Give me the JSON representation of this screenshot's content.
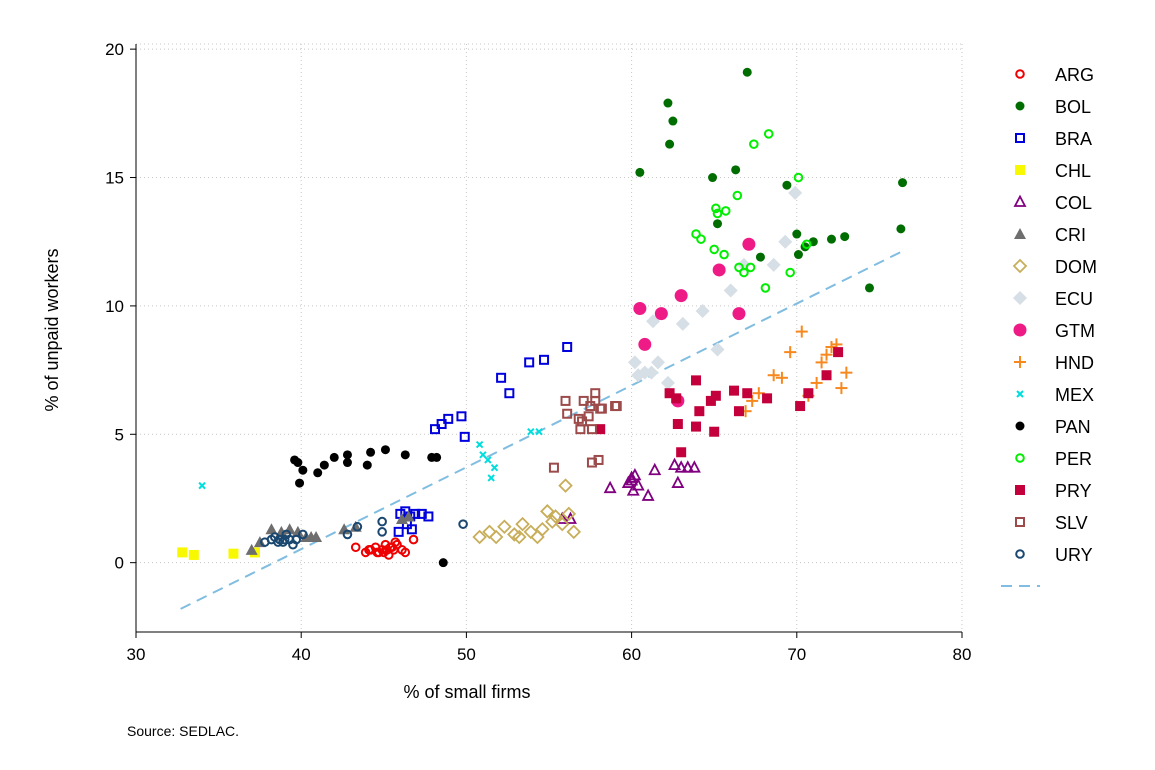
{
  "chart_data": {
    "type": "scatter",
    "xlabel": "% of small firms",
    "ylabel": "% of unpaid workers",
    "note": "Source: SEDLAC.",
    "xlim": [
      30,
      80
    ],
    "ylim": [
      -2.7,
      20.2
    ],
    "xticks": [
      30,
      40,
      50,
      60,
      70,
      80
    ],
    "yticks": [
      0,
      5,
      10,
      15,
      20
    ],
    "grid": true,
    "legend_position": "right",
    "fit_line": {
      "color": "#80bde0",
      "x": [
        32.7,
        76.3
      ],
      "y": [
        -1.8,
        12.1
      ]
    },
    "series": [
      {
        "name": "ARG",
        "marker": "circle-open",
        "color": "#ee0000",
        "x": [
          43.3,
          43.9,
          44.2,
          44.5,
          44.7,
          44.9,
          45.1,
          45.3,
          45.5,
          45.6,
          45.2,
          44.6,
          45.0,
          45.4,
          45.8,
          46.1,
          46.3,
          46.8,
          44.1,
          45.7
        ],
        "y": [
          0.6,
          0.4,
          0.5,
          0.6,
          0.4,
          0.5,
          0.7,
          0.3,
          0.6,
          0.5,
          0.5,
          0.4,
          0.4,
          0.6,
          0.7,
          0.5,
          0.4,
          0.9,
          0.5,
          0.8
        ]
      },
      {
        "name": "BOL",
        "marker": "circle-filled",
        "color": "#006d00",
        "x": [
          67.0,
          62.2,
          62.5,
          62.3,
          66.3,
          64.9,
          60.5,
          69.4,
          65.2,
          70.0,
          70.1,
          71.0,
          70.5,
          72.1,
          72.9,
          76.4,
          76.3,
          74.4,
          67.8
        ],
        "y": [
          19.1,
          17.9,
          17.2,
          16.3,
          15.3,
          15.0,
          15.2,
          14.7,
          13.2,
          12.8,
          12.0,
          12.5,
          12.3,
          12.6,
          12.7,
          14.8,
          13.0,
          10.7,
          11.9
        ]
      },
      {
        "name": "BRA",
        "marker": "square-open",
        "color": "#0000dd",
        "x": [
          56.1,
          54.7,
          53.8,
          52.1,
          52.6,
          48.9,
          49.7,
          48.5,
          48.1,
          49.9,
          46.0,
          46.3,
          46.6,
          46.9,
          47.3,
          47.7,
          45.9,
          46.7,
          46.4
        ],
        "y": [
          8.4,
          7.9,
          7.8,
          7.2,
          6.6,
          5.6,
          5.7,
          5.4,
          5.2,
          4.9,
          1.9,
          2.0,
          1.8,
          1.9,
          1.9,
          1.8,
          1.2,
          1.3,
          1.5
        ]
      },
      {
        "name": "CHL",
        "marker": "square-filled",
        "color": "#f8f800",
        "x": [
          32.8,
          33.5,
          35.9,
          37.2
        ],
        "y": [
          0.4,
          0.3,
          0.35,
          0.4
        ]
      },
      {
        "name": "COL",
        "marker": "triangle-open",
        "color": "#800080",
        "x": [
          58.7,
          59.8,
          60.0,
          60.2,
          60.4,
          60.1,
          60.0,
          61.0,
          61.4,
          62.6,
          63.0,
          63.4,
          63.8,
          62.8,
          55.8,
          56.3
        ],
        "y": [
          2.9,
          3.1,
          3.3,
          3.4,
          3.0,
          2.8,
          3.2,
          2.6,
          3.6,
          3.8,
          3.7,
          3.7,
          3.7,
          3.1,
          1.7,
          1.7
        ]
      },
      {
        "name": "CRI",
        "marker": "triangle-filled",
        "color": "#6e6e6e",
        "x": [
          37.0,
          37.5,
          38.2,
          38.8,
          39.3,
          39.8,
          40.3,
          40.6,
          40.9,
          42.6,
          43.3,
          46.1,
          46.5
        ],
        "y": [
          0.5,
          0.8,
          1.3,
          1.2,
          1.3,
          1.2,
          1.0,
          1.0,
          1.0,
          1.3,
          1.4,
          1.7,
          1.8
        ]
      },
      {
        "name": "DOM",
        "marker": "diamond-open",
        "color": "#c8ae5a",
        "x": [
          50.8,
          51.4,
          51.8,
          52.3,
          52.9,
          53.4,
          53.9,
          54.3,
          54.9,
          55.4,
          55.8,
          56.2,
          56.5,
          56.0,
          53.2,
          54.6,
          55.2
        ],
        "y": [
          1.0,
          1.2,
          1.0,
          1.4,
          1.1,
          1.5,
          1.2,
          1.0,
          2.0,
          1.8,
          1.5,
          1.9,
          1.2,
          3.0,
          1.0,
          1.3,
          1.6
        ]
      },
      {
        "name": "ECU",
        "marker": "diamond-filled",
        "color": "#d6dee6",
        "x": [
          60.2,
          60.8,
          61.3,
          61.6,
          62.2,
          63.1,
          64.3,
          65.2,
          66.0,
          66.8,
          68.6,
          69.3,
          69.9,
          60.4,
          61.2
        ],
        "y": [
          7.8,
          7.4,
          9.4,
          7.8,
          7.0,
          9.3,
          9.8,
          8.3,
          10.6,
          11.6,
          11.6,
          12.5,
          14.4,
          7.3,
          7.4
        ]
      },
      {
        "name": "GTM",
        "marker": "circle-big",
        "color": "#ee1b87",
        "x": [
          60.5,
          60.8,
          61.8,
          63.0,
          62.8,
          65.3,
          66.5,
          67.1
        ],
        "y": [
          9.9,
          8.5,
          9.7,
          10.4,
          6.3,
          11.4,
          9.7,
          12.4
        ]
      },
      {
        "name": "HND",
        "marker": "plus",
        "color": "#f7881e",
        "x": [
          70.3,
          69.6,
          71.5,
          71.8,
          72.1,
          72.4,
          73.0,
          72.7,
          70.7,
          71.2,
          68.6,
          69.1,
          67.3,
          66.9,
          67.7
        ],
        "y": [
          9.0,
          8.2,
          7.8,
          8.1,
          8.4,
          8.5,
          7.4,
          6.8,
          6.5,
          7.0,
          7.3,
          7.2,
          6.3,
          5.9,
          6.6
        ]
      },
      {
        "name": "MEX",
        "marker": "cross-small",
        "color": "#00dddd",
        "x": [
          34.0,
          50.8,
          51.0,
          51.3,
          51.5,
          51.7,
          53.9,
          54.4
        ],
        "y": [
          3.0,
          4.6,
          4.2,
          4.0,
          3.3,
          3.7,
          5.1,
          5.1
        ]
      },
      {
        "name": "PAN",
        "marker": "circle-filled",
        "color": "#000000",
        "x": [
          39.6,
          39.8,
          40.1,
          39.9,
          41.0,
          41.4,
          42.0,
          42.8,
          42.8,
          44.0,
          44.2,
          45.1,
          46.3,
          47.9,
          48.2,
          48.6
        ],
        "y": [
          4.0,
          3.9,
          3.6,
          3.1,
          3.5,
          3.8,
          4.1,
          4.2,
          3.9,
          3.8,
          4.3,
          4.4,
          4.2,
          4.1,
          4.1,
          0.0
        ]
      },
      {
        "name": "PER",
        "marker": "circle-open",
        "color": "#00ee00",
        "x": [
          68.3,
          67.4,
          70.1,
          66.4,
          65.1,
          65.2,
          65.7,
          63.9,
          64.2,
          65.0,
          65.6,
          66.5,
          66.8,
          67.2,
          69.6,
          70.6,
          68.1
        ],
        "y": [
          16.7,
          16.3,
          15.0,
          14.3,
          13.8,
          13.6,
          13.7,
          12.8,
          12.6,
          12.2,
          12.0,
          11.5,
          11.3,
          11.5,
          11.3,
          12.4,
          10.7
        ]
      },
      {
        "name": "PRY",
        "marker": "square-filled",
        "color": "#c3003c",
        "x": [
          63.9,
          64.1,
          62.3,
          62.7,
          62.8,
          63.0,
          64.8,
          65.1,
          63.9,
          65.0,
          66.2,
          66.5,
          67.0,
          68.2,
          70.2,
          70.7,
          71.8,
          72.5,
          58.1
        ],
        "y": [
          7.1,
          5.9,
          6.6,
          6.4,
          5.4,
          4.3,
          6.3,
          6.5,
          5.3,
          5.1,
          6.7,
          5.9,
          6.6,
          6.4,
          6.1,
          6.6,
          7.3,
          8.2,
          5.2
        ]
      },
      {
        "name": "SLV",
        "marker": "square-open",
        "color": "#9c4a4a",
        "x": [
          56.0,
          57.1,
          57.5,
          57.8,
          58.1,
          57.4,
          58.2,
          59.1,
          59.0,
          56.1,
          56.8,
          57.0,
          56.9,
          57.6,
          57.8,
          55.3,
          57.6,
          58.0
        ],
        "y": [
          6.3,
          6.3,
          6.1,
          6.6,
          6.0,
          5.7,
          6.0,
          6.1,
          6.1,
          5.8,
          5.6,
          5.5,
          5.2,
          5.2,
          6.3,
          3.7,
          3.9,
          4.0
        ]
      },
      {
        "name": "URY",
        "marker": "circle-open",
        "color": "#1a476f",
        "x": [
          37.8,
          38.2,
          38.4,
          38.7,
          38.9,
          39.1,
          39.3,
          39.5,
          39.7,
          40.1,
          42.8,
          43.4,
          44.9,
          44.9,
          49.8,
          38.6,
          39.0
        ],
        "y": [
          0.8,
          0.9,
          1.0,
          0.9,
          0.8,
          1.1,
          0.9,
          0.7,
          0.9,
          1.1,
          1.1,
          1.4,
          1.6,
          1.2,
          1.5,
          0.8,
          0.9
        ]
      }
    ]
  }
}
